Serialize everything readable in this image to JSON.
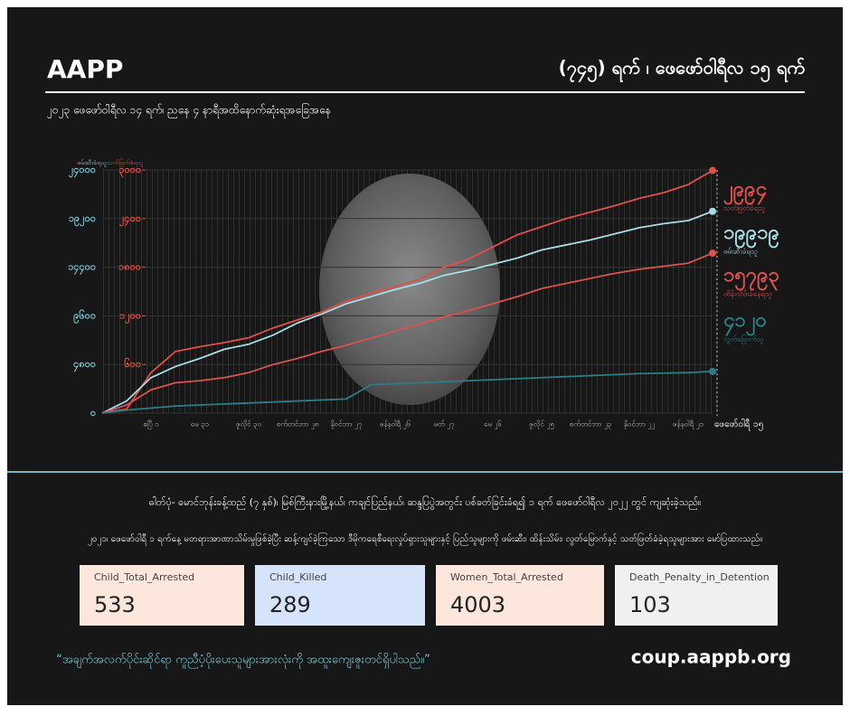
{
  "header": {
    "brand": "AAPP",
    "title": "(၇၄၅) ရက် ၊ ဖေဖော်ဝါရီလ ၁၅ ရက်",
    "subtitle": "၂၀၂၃ ဖေဖော်ဝါရီလ ၁၄ ရက်၊ ညနေ ၄ နာရီအထိနောက်ဆုံးရအခြေအနေ"
  },
  "chart_data": {
    "type": "line",
    "categories": [
      null,
      null,
      "ဧပြီ ၁",
      null,
      "မေ ၃၁",
      null,
      "ဇူလိုင် ၃၀",
      null,
      "စက်တင်ဘာ ၂၈",
      null,
      "နိုဝင်ဘာ ၂၇",
      null,
      "ဇန်နဝါရီ ၂၆",
      null,
      "မတ် ၂၇",
      null,
      "မေ ၂၆",
      null,
      "ဇူလိုင် ၂၅",
      null,
      "စက်တင်ဘာ ၂၃",
      null,
      "နိုဝင်ဘာ ၂၂",
      null,
      "ဇန်နဝါရီ ၂၁",
      "ဖေဖော်ဝါရီ ၁၅"
    ],
    "ylim": [
      0,
      24000
    ],
    "yticks": [
      {
        "value": 0,
        "label": "၀"
      },
      {
        "value": 4800,
        "label": "၄၈၀၀"
      },
      {
        "value": 9600,
        "label": "၉၆၀၀"
      },
      {
        "value": 14400,
        "label": "၁၄၄၀၀"
      },
      {
        "value": 19200,
        "label": "၁၉၂၀၀"
      },
      {
        "value": 24000,
        "label": "၂၄၀၀၀"
      }
    ],
    "y2lim": [
      0,
      3000
    ],
    "y2ticks": [
      {
        "value": 600,
        "label": "၆၀၀"
      },
      {
        "value": 1200,
        "label": "၁၂၀၀"
      },
      {
        "value": 1800,
        "label": "၁၈၀၀"
      },
      {
        "value": 2400,
        "label": "၂၄၀၀"
      },
      {
        "value": 3000,
        "label": "၃၀၀၀"
      }
    ],
    "grid": true,
    "series": [
      {
        "name": "သတ်ဖြတ်ခံရသူ",
        "color": "#e0504a",
        "axis": "y2",
        "values": [
          0,
          50,
          500,
          760,
          820,
          870,
          930,
          1050,
          1150,
          1250,
          1380,
          1480,
          1560,
          1650,
          1800,
          1900,
          2050,
          2200,
          2300,
          2400,
          2480,
          2560,
          2650,
          2720,
          2820,
          2994
        ],
        "value_labels": [
          null,
          null,
          null,
          null,
          null,
          null,
          null,
          null,
          null,
          null,
          null,
          null,
          null,
          null,
          null,
          null,
          null,
          null,
          null,
          null,
          null,
          null,
          null,
          null,
          null,
          "၂၉၉၄"
        ]
      },
      {
        "name": "ဖမ်းဆီးခံရသူ",
        "color": "#a8dde6",
        "values": [
          0,
          1200,
          3500,
          4600,
          5400,
          6300,
          6800,
          7700,
          8900,
          9800,
          10800,
          11500,
          12200,
          12800,
          13600,
          14100,
          14700,
          15300,
          16100,
          16600,
          17100,
          17700,
          18300,
          18700,
          19000,
          19919
        ],
        "value_labels": [
          null,
          null,
          null,
          null,
          null,
          null,
          null,
          null,
          null,
          null,
          null,
          null,
          null,
          null,
          null,
          null,
          null,
          null,
          null,
          null,
          null,
          null,
          null,
          null,
          null,
          "၁၉၉၁၉"
        ]
      },
      {
        "name": "ထိန်းသိမ်းခံနေရသူ",
        "color": "#d9534f",
        "values": [
          0,
          800,
          2300,
          3000,
          3200,
          3500,
          4000,
          4800,
          5400,
          6100,
          6700,
          7400,
          8100,
          8800,
          9500,
          10100,
          10800,
          11500,
          12300,
          12800,
          13300,
          13800,
          14200,
          14500,
          14800,
          15793
        ],
        "value_labels": [
          null,
          null,
          null,
          null,
          null,
          null,
          null,
          null,
          null,
          null,
          null,
          null,
          null,
          null,
          null,
          null,
          null,
          null,
          null,
          null,
          null,
          null,
          null,
          null,
          null,
          "၁၅၇၉၃"
        ]
      },
      {
        "name": "လွတ်မြောက်သူ",
        "color": "#2e7d86",
        "values": [
          0,
          300,
          500,
          700,
          800,
          900,
          1000,
          1100,
          1200,
          1300,
          1400,
          2800,
          2900,
          3000,
          3100,
          3200,
          3300,
          3400,
          3500,
          3600,
          3700,
          3800,
          3900,
          3950,
          4000,
          4120
        ],
        "value_labels": [
          null,
          null,
          null,
          null,
          null,
          null,
          null,
          null,
          null,
          null,
          null,
          null,
          null,
          null,
          null,
          null,
          null,
          null,
          null,
          null,
          null,
          null,
          null,
          null,
          null,
          "၄၁၂၀"
        ]
      }
    ]
  },
  "notes": [
    "ဓါတ်ပုံ- မောင်ဘုန်းခန့်ထည် (၇ နှစ်)၊ မြစ်ကြီးနားမြို့နယ်၊ ကချင်ပြည်နယ်၊ ဆန္ဒပြပွဲအတွင်း ပစ်ခတ်ခြင်းခံရ၍ ၁ ရက် ဖေဖော်ဝါရီလ ၂၀၂၂ တွင် ကျဆုံးခဲ့သည်။",
    "၂၀၂၁၊ ဖေဖော်ဝါရီ ၁ ရက်နေ့ မတရားအာဏာသိမ်းမှုဖြစ်ခဲ့ပြီး ဆန့်ကျင်ခဲ့ကြသော ဒီမိုကရေစီရေးလှုပ်ရှားသူများနှင့် ပြည်သူများကို ဖမ်းဆီး၊ ထိန်းသိမ်း၊ လွတ်မြောက်နှင့် သတ်ဖြတ်ခံခဲ့ရသူများအား မော်ပြထားသည်။"
  ],
  "stats": [
    {
      "label": "Child_Total_Arrested",
      "value": "533",
      "color": "#fde6dc"
    },
    {
      "label": "Child_Killed",
      "value": "289",
      "color": "#d5e3fb"
    },
    {
      "label": "Women_Total_Arrested",
      "value": "4003",
      "color": "#fde6dc"
    },
    {
      "label": "Death_Penalty_in_Detention",
      "value": "103",
      "color": "#f0f0f0"
    }
  ],
  "footer": {
    "quote": "“အချက်အလက်ပိုင်းဆိုင်ရာ ကူညီပံ့ပိုးပေးသူများအားလုံးကို အထူးကျေးဇူးတင်ရှိပါသည်။”",
    "url": "coup.aappb.org"
  }
}
